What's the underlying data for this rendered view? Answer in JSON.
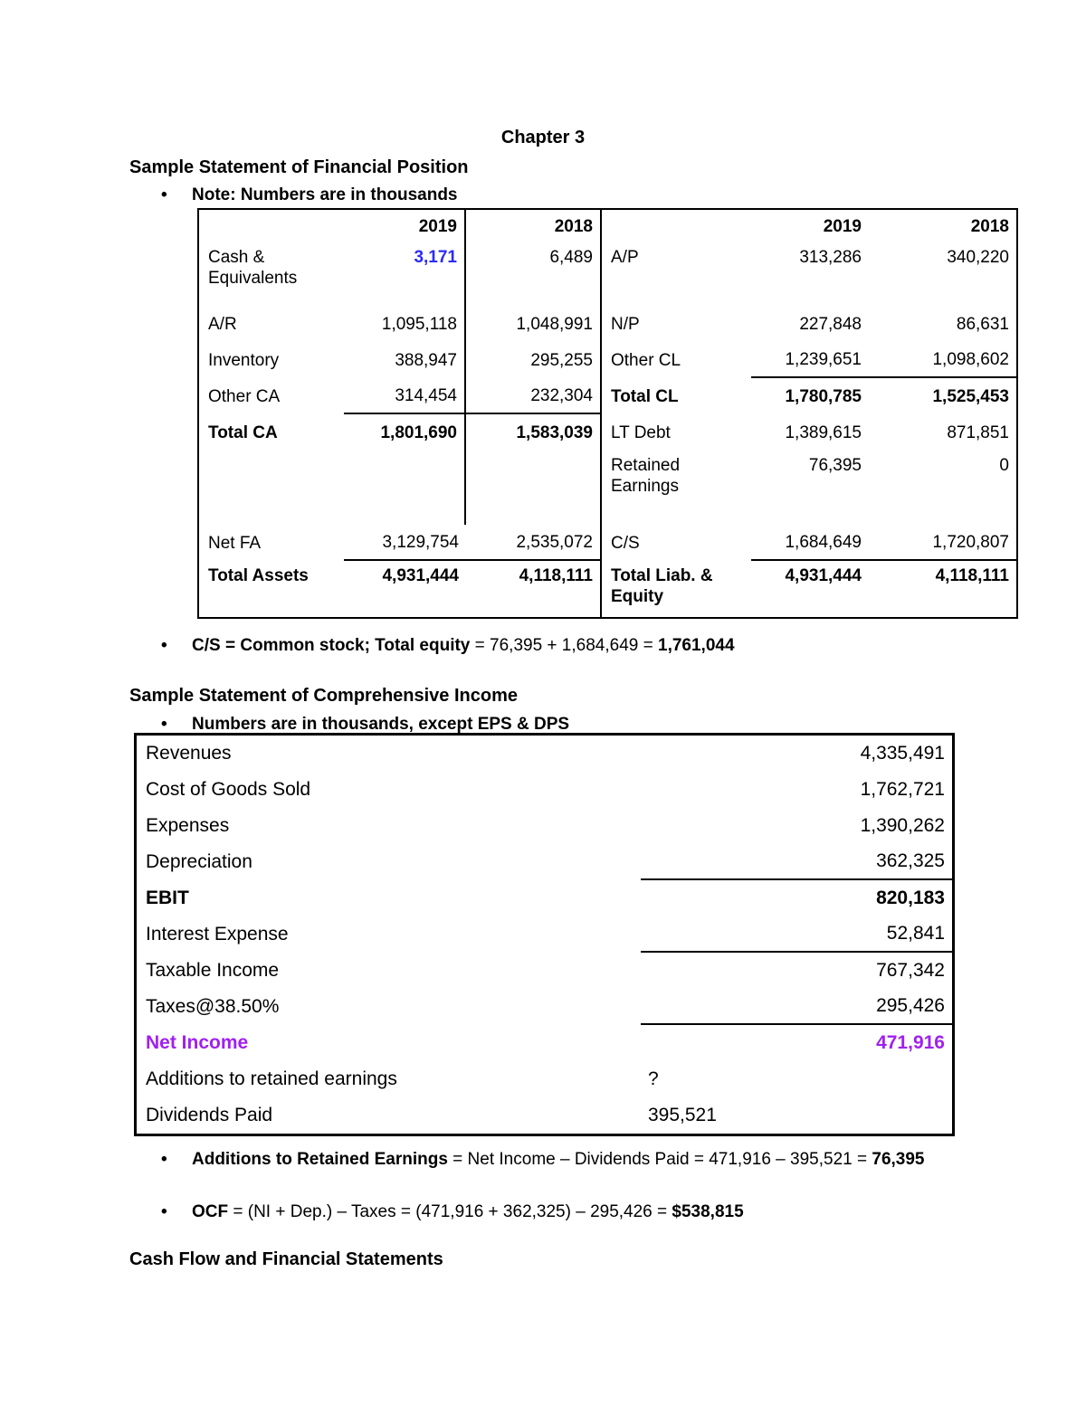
{
  "headings": {
    "title": "Chapter 3",
    "financial_position": "Sample Statement of Financial Position",
    "comprehensive_income": "Sample Statement of Comprehensive Income",
    "cash_flow": "Cash Flow and Financial Statements"
  },
  "bullets": {
    "note1": "Note: Numbers are in thousands",
    "cs": {
      "b1": "C/S = Common stock; Total equity",
      "mid": " = 76,395 + 1,684,649 = ",
      "b2": "1,761,044"
    },
    "note2": "Numbers are in thousands, except EPS & DPS",
    "additions": {
      "b1": "Additions to Retained Earnings",
      "mid": " = Net Income – Dividends Paid = 471,916 – 395,521 = ",
      "b2": "76,395"
    },
    "ocf": {
      "b1": "OCF",
      "mid": " = (NI + Dep.) – Taxes = (471,916 + 362,325) – 295,426 = ",
      "b2": "$538,815"
    }
  },
  "balance_sheet": {
    "col_headers": [
      "2019",
      "2018"
    ],
    "assets": [
      {
        "label": "Cash & Equivalents",
        "v2019": "3,171",
        "v2018": "6,489"
      },
      {
        "label": "A/R",
        "v2019": "1,095,118",
        "v2018": "1,048,991"
      },
      {
        "label": "Inventory",
        "v2019": "388,947",
        "v2018": "295,255"
      },
      {
        "label": "Other CA",
        "v2019": "314,454",
        "v2018": "232,304"
      },
      {
        "label": "Total CA",
        "v2019": "1,801,690",
        "v2018": "1,583,039"
      },
      {
        "label": "Net FA",
        "v2019": "3,129,754",
        "v2018": "2,535,072"
      },
      {
        "label": "Total Assets",
        "v2019": "4,931,444",
        "v2018": "4,118,111"
      }
    ],
    "liabilities_equity": [
      {
        "label": "A/P",
        "v2019": "313,286",
        "v2018": "340,220"
      },
      {
        "label": "N/P",
        "v2019": "227,848",
        "v2018": "86,631"
      },
      {
        "label": "Other CL",
        "v2019": "1,239,651",
        "v2018": "1,098,602"
      },
      {
        "label": "Total CL",
        "v2019": "1,780,785",
        "v2018": "1,525,453"
      },
      {
        "label": "LT Debt",
        "v2019": "1,389,615",
        "v2018": "871,851"
      },
      {
        "label": "Retained Earnings",
        "v2019": "76,395",
        "v2018": "0"
      },
      {
        "label": "C/S",
        "v2019": "1,684,649",
        "v2018": "1,720,807"
      },
      {
        "label": "Total Liab. & Equity",
        "v2019": "4,931,444",
        "v2018": "4,118,111"
      }
    ]
  },
  "income_statement": {
    "rows": [
      {
        "label": "Revenues",
        "value": "4,335,491"
      },
      {
        "label": "Cost of Goods Sold",
        "value": "1,762,721"
      },
      {
        "label": "Expenses",
        "value": "1,390,262"
      },
      {
        "label": "Depreciation",
        "value": "362,325"
      },
      {
        "label": "EBIT",
        "value": "820,183"
      },
      {
        "label": "Interest Expense",
        "value": "52,841"
      },
      {
        "label": "Taxable Income",
        "value": "767,342"
      },
      {
        "label": "Taxes@38.50%",
        "value": "295,426"
      },
      {
        "label": "Net Income",
        "value": "471,916"
      },
      {
        "label": "Additions to retained earnings",
        "mid": "?"
      },
      {
        "label": "Dividends Paid",
        "mid": "395,521"
      }
    ]
  },
  "colors": {
    "cash_highlight_blue": "#2B2BF5",
    "net_income_purple": "#A020F0"
  }
}
